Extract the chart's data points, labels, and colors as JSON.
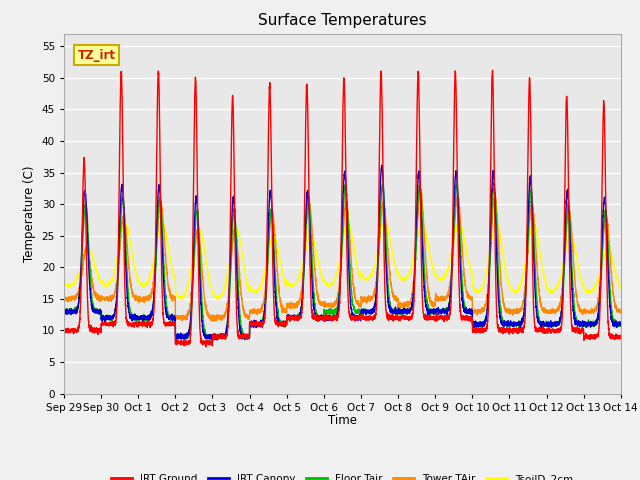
{
  "title": "Surface Temperatures",
  "xlabel": "Time",
  "ylabel": "Temperature (C)",
  "ylim": [
    0,
    57
  ],
  "yticks": [
    0,
    5,
    10,
    15,
    20,
    25,
    30,
    35,
    40,
    45,
    50,
    55
  ],
  "date_labels": [
    "Sep 29",
    "Sep 30",
    "Oct 1",
    "Oct 2",
    "Oct 3",
    "Oct 4",
    "Oct 5",
    "Oct 6",
    "Oct 7",
    "Oct 8",
    "Oct 9",
    "Oct 10",
    "Oct 11",
    "Oct 12",
    "Oct 13",
    "Oct 14"
  ],
  "series_colors": {
    "IRT Ground": "#ff0000",
    "IRT Canopy": "#0000cc",
    "Floor Tair": "#00bb00",
    "Tower TAir": "#ff8800",
    "TsoilD_2cm": "#ffff00"
  },
  "annotation_text": "TZ_irt",
  "annotation_bg": "#ffff99",
  "annotation_border": "#ccaa00",
  "plot_bg": "#e8e8e8",
  "fig_bg": "#f0f0f0",
  "grid_color": "#ffffff",
  "n_days": 15,
  "points_per_day": 288
}
